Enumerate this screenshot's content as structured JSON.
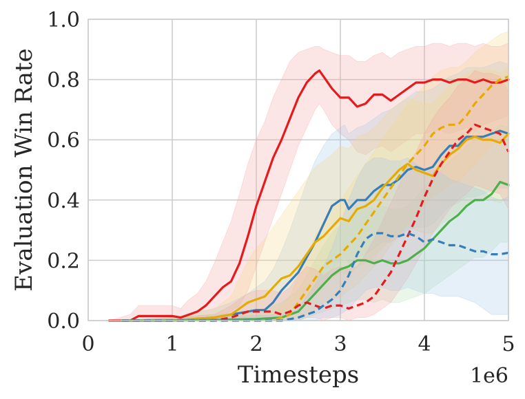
{
  "chart_data": {
    "type": "line",
    "title": "",
    "xlabel": "Timesteps",
    "ylabel": "Evaluation Win Rate",
    "x_offset_label": "1e6",
    "xlim": [
      0,
      5
    ],
    "ylim": [
      0,
      1
    ],
    "xticks": [
      "0",
      "1",
      "2",
      "3",
      "4",
      "5"
    ],
    "yticks": [
      "0.0",
      "0.2",
      "0.4",
      "0.6",
      "0.8",
      "1.0"
    ],
    "grid": true,
    "legend": "none",
    "series": [
      {
        "color": "#e41a1c",
        "dash": false,
        "band_color": "#f4a3a3",
        "x": [
          0.25,
          0.5,
          0.6,
          0.7,
          0.8,
          0.9,
          1.0,
          1.1,
          1.2,
          1.3,
          1.4,
          1.5,
          1.6,
          1.7,
          1.8,
          1.9,
          2.0,
          2.1,
          2.2,
          2.3,
          2.4,
          2.5,
          2.6,
          2.7,
          2.75,
          2.8,
          2.9,
          3.0,
          3.1,
          3.2,
          3.3,
          3.4,
          3.5,
          3.6,
          3.7,
          3.8,
          3.9,
          4.0,
          4.1,
          4.2,
          4.3,
          4.4,
          4.5,
          4.6,
          4.7,
          4.8,
          4.9,
          5.0
        ],
        "y": [
          0.0,
          0.0,
          0.015,
          0.015,
          0.015,
          0.015,
          0.015,
          0.01,
          0.02,
          0.03,
          0.05,
          0.08,
          0.11,
          0.13,
          0.19,
          0.28,
          0.38,
          0.46,
          0.54,
          0.6,
          0.67,
          0.74,
          0.79,
          0.82,
          0.83,
          0.81,
          0.77,
          0.74,
          0.74,
          0.71,
          0.72,
          0.75,
          0.75,
          0.73,
          0.75,
          0.77,
          0.79,
          0.79,
          0.8,
          0.8,
          0.79,
          0.8,
          0.8,
          0.79,
          0.8,
          0.79,
          0.79,
          0.8
        ],
        "y_low": [
          0.0,
          0.0,
          0.0,
          0.0,
          0.0,
          0.0,
          0.0,
          0.0,
          0.0,
          0.0,
          0.0,
          0.01,
          0.02,
          0.03,
          0.05,
          0.1,
          0.18,
          0.26,
          0.34,
          0.42,
          0.5,
          0.58,
          0.64,
          0.7,
          0.72,
          0.7,
          0.65,
          0.62,
          0.6,
          0.56,
          0.55,
          0.57,
          0.58,
          0.56,
          0.58,
          0.6,
          0.62,
          0.62,
          0.63,
          0.63,
          0.62,
          0.63,
          0.64,
          0.63,
          0.65,
          0.66,
          0.67,
          0.68
        ],
        "y_high": [
          0.0,
          0.02,
          0.05,
          0.05,
          0.05,
          0.05,
          0.05,
          0.04,
          0.07,
          0.09,
          0.13,
          0.19,
          0.26,
          0.33,
          0.42,
          0.52,
          0.6,
          0.66,
          0.74,
          0.8,
          0.86,
          0.89,
          0.9,
          0.91,
          0.91,
          0.9,
          0.89,
          0.88,
          0.88,
          0.86,
          0.86,
          0.88,
          0.89,
          0.87,
          0.89,
          0.9,
          0.91,
          0.91,
          0.92,
          0.92,
          0.91,
          0.92,
          0.92,
          0.91,
          0.92,
          0.91,
          0.91,
          0.92
        ]
      },
      {
        "color": "#377eb8",
        "dash": false,
        "band_color": "#a6c8e6",
        "x": [
          0.4,
          1.0,
          1.5,
          1.7,
          1.9,
          2.0,
          2.1,
          2.2,
          2.3,
          2.4,
          2.5,
          2.6,
          2.7,
          2.8,
          2.9,
          3.0,
          3.05,
          3.1,
          3.2,
          3.3,
          3.4,
          3.5,
          3.6,
          3.7,
          3.8,
          3.9,
          4.0,
          4.1,
          4.2,
          4.3,
          4.4,
          4.5,
          4.6,
          4.7,
          4.8,
          4.9,
          5.0
        ],
        "y": [
          0.0,
          0.0,
          0.01,
          0.02,
          0.03,
          0.035,
          0.035,
          0.06,
          0.1,
          0.13,
          0.16,
          0.21,
          0.26,
          0.32,
          0.38,
          0.4,
          0.4,
          0.37,
          0.4,
          0.4,
          0.43,
          0.45,
          0.45,
          0.47,
          0.5,
          0.51,
          0.5,
          0.51,
          0.55,
          0.58,
          0.58,
          0.61,
          0.61,
          0.61,
          0.62,
          0.63,
          0.62
        ],
        "y_low": [
          0.0,
          0.0,
          0.0,
          0.0,
          0.0,
          0.0,
          0.0,
          0.0,
          0.01,
          0.02,
          0.03,
          0.06,
          0.09,
          0.13,
          0.17,
          0.2,
          0.21,
          0.19,
          0.21,
          0.22,
          0.24,
          0.26,
          0.26,
          0.28,
          0.3,
          0.31,
          0.31,
          0.32,
          0.35,
          0.38,
          0.39,
          0.41,
          0.41,
          0.42,
          0.43,
          0.44,
          0.44
        ],
        "y_high": [
          0.0,
          0.01,
          0.04,
          0.06,
          0.09,
          0.11,
          0.13,
          0.17,
          0.23,
          0.3,
          0.38,
          0.46,
          0.53,
          0.58,
          0.62,
          0.64,
          0.65,
          0.62,
          0.64,
          0.65,
          0.67,
          0.69,
          0.7,
          0.72,
          0.74,
          0.76,
          0.76,
          0.77,
          0.79,
          0.81,
          0.82,
          0.84,
          0.84,
          0.84,
          0.85,
          0.86,
          0.85
        ]
      },
      {
        "color": "#e6ab02",
        "dash": false,
        "band_color": "#f5d88a",
        "x": [
          0.4,
          1.0,
          1.5,
          1.7,
          1.8,
          1.9,
          2.0,
          2.1,
          2.2,
          2.3,
          2.4,
          2.5,
          2.6,
          2.7,
          2.8,
          2.9,
          3.0,
          3.1,
          3.2,
          3.3,
          3.4,
          3.5,
          3.6,
          3.7,
          3.8,
          3.9,
          4.0,
          4.1,
          4.2,
          4.3,
          4.4,
          4.5,
          4.6,
          4.7,
          4.8,
          4.9,
          5.0
        ],
        "y": [
          0.0,
          0.0,
          0.01,
          0.02,
          0.04,
          0.06,
          0.07,
          0.08,
          0.11,
          0.14,
          0.15,
          0.18,
          0.22,
          0.26,
          0.28,
          0.31,
          0.34,
          0.33,
          0.37,
          0.38,
          0.4,
          0.44,
          0.47,
          0.5,
          0.52,
          0.5,
          0.49,
          0.48,
          0.52,
          0.55,
          0.57,
          0.6,
          0.61,
          0.6,
          0.6,
          0.59,
          0.62
        ],
        "y_low": [
          0.0,
          0.0,
          0.0,
          0.0,
          0.0,
          0.01,
          0.01,
          0.01,
          0.02,
          0.03,
          0.04,
          0.06,
          0.08,
          0.1,
          0.12,
          0.14,
          0.16,
          0.15,
          0.18,
          0.19,
          0.21,
          0.24,
          0.27,
          0.29,
          0.31,
          0.3,
          0.29,
          0.29,
          0.32,
          0.34,
          0.36,
          0.39,
          0.4,
          0.4,
          0.4,
          0.39,
          0.41
        ],
        "y_high": [
          0.0,
          0.01,
          0.04,
          0.08,
          0.14,
          0.2,
          0.24,
          0.27,
          0.31,
          0.35,
          0.39,
          0.43,
          0.47,
          0.51,
          0.53,
          0.55,
          0.58,
          0.57,
          0.61,
          0.62,
          0.64,
          0.67,
          0.7,
          0.72,
          0.74,
          0.73,
          0.72,
          0.72,
          0.75,
          0.78,
          0.8,
          0.82,
          0.83,
          0.83,
          0.83,
          0.82,
          0.84
        ]
      },
      {
        "color": "#4daf4a",
        "dash": false,
        "band_color": "#b5dfb3",
        "x": [
          0.4,
          1.0,
          2.0,
          2.3,
          2.5,
          2.6,
          2.7,
          2.8,
          2.9,
          3.0,
          3.1,
          3.2,
          3.3,
          3.4,
          3.5,
          3.6,
          3.7,
          3.8,
          3.9,
          4.0,
          4.1,
          4.2,
          4.3,
          4.4,
          4.5,
          4.6,
          4.7,
          4.8,
          4.9,
          5.0
        ],
        "y": [
          0.0,
          0.0,
          0.005,
          0.01,
          0.03,
          0.06,
          0.09,
          0.12,
          0.15,
          0.17,
          0.18,
          0.2,
          0.2,
          0.19,
          0.2,
          0.19,
          0.19,
          0.2,
          0.22,
          0.24,
          0.27,
          0.3,
          0.33,
          0.35,
          0.38,
          0.4,
          0.4,
          0.42,
          0.46,
          0.45
        ],
        "y_low": [
          0.0,
          0.0,
          0.0,
          0.0,
          0.0,
          0.01,
          0.02,
          0.03,
          0.04,
          0.05,
          0.06,
          0.07,
          0.07,
          0.06,
          0.07,
          0.06,
          0.06,
          0.07,
          0.08,
          0.09,
          0.11,
          0.13,
          0.15,
          0.17,
          0.19,
          0.21,
          0.21,
          0.23,
          0.26,
          0.26
        ],
        "y_high": [
          0.0,
          0.01,
          0.03,
          0.06,
          0.1,
          0.15,
          0.2,
          0.25,
          0.29,
          0.32,
          0.34,
          0.37,
          0.38,
          0.37,
          0.38,
          0.37,
          0.37,
          0.38,
          0.41,
          0.44,
          0.47,
          0.5,
          0.53,
          0.55,
          0.58,
          0.6,
          0.6,
          0.62,
          0.65,
          0.64
        ]
      },
      {
        "color": "#e6ab02",
        "dash": true,
        "band_color": "#f5d88a",
        "x": [
          0.4,
          2.2,
          2.4,
          2.5,
          2.6,
          2.7,
          2.8,
          2.9,
          3.0,
          3.1,
          3.2,
          3.3,
          3.4,
          3.5,
          3.6,
          3.7,
          3.8,
          3.9,
          4.0,
          4.1,
          4.2,
          4.3,
          4.4,
          4.5,
          4.6,
          4.7,
          4.8,
          4.9,
          5.0
        ],
        "y": [
          0.0,
          0.0,
          0.02,
          0.06,
          0.1,
          0.14,
          0.18,
          0.2,
          0.22,
          0.25,
          0.28,
          0.32,
          0.36,
          0.4,
          0.44,
          0.48,
          0.52,
          0.55,
          0.58,
          0.62,
          0.64,
          0.65,
          0.65,
          0.68,
          0.72,
          0.75,
          0.78,
          0.8,
          0.81
        ],
        "y_low": [
          0.0,
          0.0,
          0.0,
          0.01,
          0.02,
          0.04,
          0.06,
          0.07,
          0.08,
          0.1,
          0.12,
          0.15,
          0.18,
          0.21,
          0.25,
          0.28,
          0.32,
          0.35,
          0.38,
          0.41,
          0.43,
          0.45,
          0.46,
          0.49,
          0.52,
          0.55,
          0.58,
          0.6,
          0.62
        ],
        "y_high": [
          0.0,
          0.02,
          0.08,
          0.15,
          0.22,
          0.28,
          0.33,
          0.37,
          0.4,
          0.44,
          0.48,
          0.52,
          0.56,
          0.6,
          0.64,
          0.68,
          0.72,
          0.75,
          0.78,
          0.81,
          0.83,
          0.84,
          0.84,
          0.86,
          0.89,
          0.91,
          0.93,
          0.95,
          0.96
        ]
      },
      {
        "color": "#e41a1c",
        "dash": true,
        "band_color": "#f4a3a3",
        "x": [
          0.4,
          1.5,
          1.7,
          1.8,
          1.9,
          2.0,
          2.1,
          2.2,
          2.3,
          2.4,
          2.5,
          2.6,
          2.7,
          2.8,
          2.9,
          3.0,
          3.1,
          3.2,
          3.3,
          3.4,
          3.5,
          3.6,
          3.7,
          3.8,
          3.9,
          4.0,
          4.1,
          4.2,
          4.3,
          4.4,
          4.5,
          4.6,
          4.7,
          4.8,
          4.9,
          5.0
        ],
        "y": [
          0.0,
          0.0,
          0.01,
          0.02,
          0.03,
          0.03,
          0.03,
          0.03,
          0.02,
          0.03,
          0.05,
          0.06,
          0.05,
          0.04,
          0.05,
          0.05,
          0.04,
          0.05,
          0.06,
          0.08,
          0.12,
          0.16,
          0.22,
          0.28,
          0.34,
          0.41,
          0.47,
          0.52,
          0.56,
          0.6,
          0.62,
          0.65,
          0.64,
          0.63,
          0.62,
          0.56
        ],
        "y_low": [
          0.0,
          0.0,
          0.0,
          0.0,
          0.0,
          0.0,
          0.0,
          0.0,
          0.0,
          0.0,
          0.0,
          0.01,
          0.01,
          0.0,
          0.01,
          0.01,
          0.0,
          0.01,
          0.01,
          0.02,
          0.04,
          0.06,
          0.1,
          0.14,
          0.19,
          0.24,
          0.29,
          0.33,
          0.37,
          0.4,
          0.42,
          0.45,
          0.44,
          0.43,
          0.42,
          0.37
        ],
        "y_high": [
          0.0,
          0.02,
          0.05,
          0.07,
          0.09,
          0.1,
          0.1,
          0.1,
          0.09,
          0.11,
          0.15,
          0.18,
          0.17,
          0.15,
          0.17,
          0.18,
          0.17,
          0.18,
          0.22,
          0.27,
          0.33,
          0.39,
          0.45,
          0.51,
          0.56,
          0.62,
          0.67,
          0.71,
          0.74,
          0.78,
          0.8,
          0.83,
          0.82,
          0.82,
          0.81,
          0.76
        ]
      },
      {
        "color": "#377eb8",
        "dash": true,
        "band_color": "#a6c8e6",
        "x": [
          0.4,
          2.3,
          2.5,
          2.6,
          2.7,
          2.8,
          2.9,
          3.0,
          3.1,
          3.2,
          3.3,
          3.4,
          3.5,
          3.6,
          3.7,
          3.8,
          3.9,
          4.0,
          4.1,
          4.2,
          4.3,
          4.4,
          4.5,
          4.6,
          4.7,
          4.8,
          4.9,
          5.0
        ],
        "y": [
          0.0,
          0.0,
          0.01,
          0.02,
          0.03,
          0.05,
          0.07,
          0.1,
          0.15,
          0.22,
          0.27,
          0.29,
          0.29,
          0.28,
          0.28,
          0.29,
          0.28,
          0.26,
          0.27,
          0.26,
          0.25,
          0.25,
          0.24,
          0.23,
          0.23,
          0.22,
          0.22,
          0.225
        ],
        "y_low": [
          0.0,
          0.0,
          0.0,
          0.0,
          0.0,
          0.01,
          0.01,
          0.02,
          0.04,
          0.07,
          0.1,
          0.11,
          0.11,
          0.1,
          0.1,
          0.11,
          0.1,
          0.09,
          0.09,
          0.08,
          0.08,
          0.08,
          0.07,
          0.06,
          0.04,
          0.02,
          0.02,
          0.02
        ],
        "y_high": [
          0.0,
          0.02,
          0.04,
          0.08,
          0.12,
          0.18,
          0.24,
          0.32,
          0.4,
          0.47,
          0.52,
          0.54,
          0.54,
          0.53,
          0.53,
          0.54,
          0.52,
          0.5,
          0.5,
          0.49,
          0.47,
          0.46,
          0.45,
          0.44,
          0.43,
          0.41,
          0.4,
          0.41
        ]
      }
    ]
  }
}
